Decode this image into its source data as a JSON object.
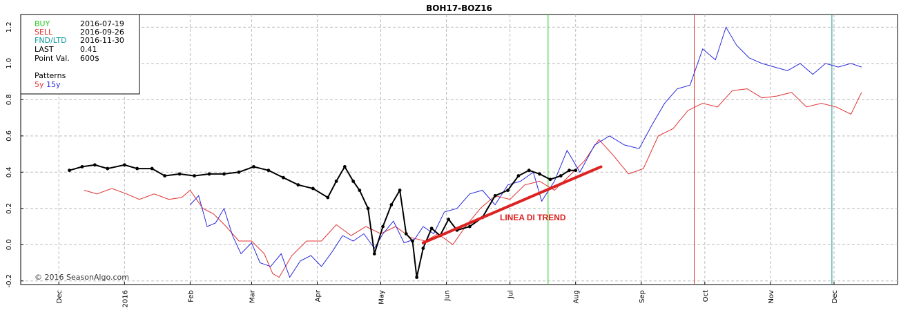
{
  "chart_data": {
    "type": "line",
    "title": "BOH17-BOZ16",
    "xlabel": "",
    "ylabel": "",
    "ylim": [
      -0.22,
      1.27
    ],
    "y_ticks": [
      "-0.2",
      "0.0",
      "0.2",
      "0.4",
      "0.6",
      "0.8",
      "1.0",
      "1.2"
    ],
    "x_ticks": [
      "Dec",
      "2016",
      "Feb",
      "Mar",
      "Apr",
      "May",
      "Jun",
      "Jul",
      "Aug",
      "Sep",
      "Oct",
      "Nov",
      "Dec"
    ],
    "grid": true,
    "info_box": {
      "rows": [
        {
          "label": "BUY",
          "value": "2016-07-19",
          "color": "#22cc22"
        },
        {
          "label": "SELL",
          "value": "2016-09-26",
          "color": "#e03030"
        },
        {
          "label": "FND/LTD",
          "value": "2016-11-30",
          "color": "#119999"
        },
        {
          "label": "LAST",
          "value": "0.41",
          "color": "#000000"
        },
        {
          "label": "Point Val.",
          "value": "600$",
          "color": "#000000"
        }
      ],
      "patterns_label": "Patterns",
      "pattern_5y": "5y",
      "pattern_15y": "15y"
    },
    "vlines": [
      {
        "name": "buy",
        "x": "2016-07-19",
        "color": "#22cc22"
      },
      {
        "name": "sell",
        "x": "2016-09-26",
        "color": "#e03030"
      },
      {
        "name": "fnd",
        "x": "2016-11-30",
        "color": "#119999"
      }
    ],
    "annotation": {
      "text": "LINEA DI TREND",
      "color": "#dd2222",
      "line": [
        {
          "x": "2016-05-21",
          "y": 0.01
        },
        {
          "x": "2016-08-13",
          "y": 0.43
        }
      ]
    },
    "copyright": "© 2016 SeasonAlgo.com",
    "series": [
      {
        "name": "5y",
        "color": "#e03030",
        "points": [
          [
            "2015-12-13",
            0.3
          ],
          [
            "2015-12-19",
            0.28
          ],
          [
            "2015-12-26",
            0.31
          ],
          [
            "2016-01-02",
            0.28
          ],
          [
            "2016-01-08",
            0.25
          ],
          [
            "2016-01-15",
            0.28
          ],
          [
            "2016-01-22",
            0.25
          ],
          [
            "2016-01-28",
            0.26
          ],
          [
            "2016-02-01",
            0.3
          ],
          [
            "2016-02-07",
            0.2
          ],
          [
            "2016-02-12",
            0.17
          ],
          [
            "2016-02-18",
            0.1
          ],
          [
            "2016-02-24",
            0.02
          ],
          [
            "2016-03-01",
            0.02
          ],
          [
            "2016-03-07",
            -0.05
          ],
          [
            "2016-03-11",
            -0.16
          ],
          [
            "2016-03-14",
            -0.18
          ],
          [
            "2016-03-20",
            -0.06
          ],
          [
            "2016-03-27",
            0.02
          ],
          [
            "2016-04-03",
            0.02
          ],
          [
            "2016-04-10",
            0.11
          ],
          [
            "2016-04-17",
            0.05
          ],
          [
            "2016-04-24",
            0.1
          ],
          [
            "2016-05-01",
            0.06
          ],
          [
            "2016-05-08",
            0.1
          ],
          [
            "2016-05-15",
            0.04
          ],
          [
            "2016-05-22",
            0.02
          ],
          [
            "2016-05-28",
            0.06
          ],
          [
            "2016-06-04",
            0.0
          ],
          [
            "2016-06-10",
            0.1
          ],
          [
            "2016-06-17",
            0.2
          ],
          [
            "2016-06-24",
            0.27
          ],
          [
            "2016-07-01",
            0.25
          ],
          [
            "2016-07-08",
            0.33
          ],
          [
            "2016-07-15",
            0.35
          ],
          [
            "2016-07-22",
            0.3
          ],
          [
            "2016-07-29",
            0.38
          ],
          [
            "2016-08-05",
            0.46
          ],
          [
            "2016-08-12",
            0.58
          ],
          [
            "2016-08-19",
            0.49
          ],
          [
            "2016-08-26",
            0.39
          ],
          [
            "2016-09-02",
            0.42
          ],
          [
            "2016-09-09",
            0.6
          ],
          [
            "2016-09-16",
            0.64
          ],
          [
            "2016-09-23",
            0.74
          ],
          [
            "2016-09-30",
            0.78
          ],
          [
            "2016-10-07",
            0.76
          ],
          [
            "2016-10-14",
            0.85
          ],
          [
            "2016-10-21",
            0.86
          ],
          [
            "2016-10-28",
            0.81
          ],
          [
            "2016-11-04",
            0.82
          ],
          [
            "2016-11-11",
            0.84
          ],
          [
            "2016-11-18",
            0.76
          ],
          [
            "2016-11-25",
            0.78
          ],
          [
            "2016-12-02",
            0.76
          ],
          [
            "2016-12-09",
            0.72
          ],
          [
            "2016-12-14",
            0.84
          ]
        ]
      },
      {
        "name": "15y",
        "color": "#2828dd",
        "points": [
          [
            "2016-02-01",
            0.22
          ],
          [
            "2016-02-05",
            0.27
          ],
          [
            "2016-02-09",
            0.1
          ],
          [
            "2016-02-13",
            0.12
          ],
          [
            "2016-02-17",
            0.2
          ],
          [
            "2016-02-21",
            0.05
          ],
          [
            "2016-02-25",
            -0.05
          ],
          [
            "2016-03-01",
            0.01
          ],
          [
            "2016-03-05",
            -0.1
          ],
          [
            "2016-03-10",
            -0.12
          ],
          [
            "2016-03-15",
            -0.05
          ],
          [
            "2016-03-19",
            -0.18
          ],
          [
            "2016-03-24",
            -0.09
          ],
          [
            "2016-03-29",
            -0.06
          ],
          [
            "2016-04-03",
            -0.12
          ],
          [
            "2016-04-08",
            -0.04
          ],
          [
            "2016-04-13",
            0.05
          ],
          [
            "2016-04-18",
            0.02
          ],
          [
            "2016-04-23",
            0.06
          ],
          [
            "2016-04-28",
            -0.02
          ],
          [
            "2016-05-02",
            0.06
          ],
          [
            "2016-05-07",
            0.13
          ],
          [
            "2016-05-12",
            0.01
          ],
          [
            "2016-05-17",
            0.03
          ],
          [
            "2016-05-21",
            0.1
          ],
          [
            "2016-05-26",
            0.06
          ],
          [
            "2016-05-31",
            0.18
          ],
          [
            "2016-06-06",
            0.2
          ],
          [
            "2016-06-12",
            0.28
          ],
          [
            "2016-06-18",
            0.3
          ],
          [
            "2016-06-24",
            0.22
          ],
          [
            "2016-06-30",
            0.33
          ],
          [
            "2016-07-06",
            0.35
          ],
          [
            "2016-07-12",
            0.4
          ],
          [
            "2016-07-16",
            0.24
          ],
          [
            "2016-07-22",
            0.35
          ],
          [
            "2016-07-28",
            0.52
          ],
          [
            "2016-08-03",
            0.4
          ],
          [
            "2016-08-10",
            0.55
          ],
          [
            "2016-08-17",
            0.6
          ],
          [
            "2016-08-24",
            0.55
          ],
          [
            "2016-08-31",
            0.53
          ],
          [
            "2016-09-06",
            0.66
          ],
          [
            "2016-09-12",
            0.78
          ],
          [
            "2016-09-18",
            0.86
          ],
          [
            "2016-09-24",
            0.88
          ],
          [
            "2016-09-30",
            1.08
          ],
          [
            "2016-10-06",
            1.02
          ],
          [
            "2016-10-11",
            1.2
          ],
          [
            "2016-10-16",
            1.1
          ],
          [
            "2016-10-22",
            1.03
          ],
          [
            "2016-10-28",
            1.0
          ],
          [
            "2016-11-03",
            0.98
          ],
          [
            "2016-11-09",
            0.96
          ],
          [
            "2016-11-15",
            1.0
          ],
          [
            "2016-11-21",
            0.94
          ],
          [
            "2016-11-27",
            1.0
          ],
          [
            "2016-12-03",
            0.98
          ],
          [
            "2016-12-09",
            1.0
          ],
          [
            "2016-12-14",
            0.98
          ]
        ]
      },
      {
        "name": "",
        "color": "#000000",
        "points": [
          [
            "2015-12-06",
            0.41
          ],
          [
            "2015-12-12",
            0.43
          ],
          [
            "2015-12-18",
            0.44
          ],
          [
            "2015-12-24",
            0.42
          ],
          [
            "2016-01-01",
            0.44
          ],
          [
            "2016-01-07",
            0.42
          ],
          [
            "2016-01-14",
            0.42
          ],
          [
            "2016-01-20",
            0.38
          ],
          [
            "2016-01-27",
            0.39
          ],
          [
            "2016-02-03",
            0.38
          ],
          [
            "2016-02-10",
            0.39
          ],
          [
            "2016-02-17",
            0.39
          ],
          [
            "2016-02-24",
            0.4
          ],
          [
            "2016-03-02",
            0.43
          ],
          [
            "2016-03-09",
            0.41
          ],
          [
            "2016-03-16",
            0.37
          ],
          [
            "2016-03-23",
            0.33
          ],
          [
            "2016-03-30",
            0.31
          ],
          [
            "2016-04-06",
            0.26
          ],
          [
            "2016-04-10",
            0.35
          ],
          [
            "2016-04-14",
            0.43
          ],
          [
            "2016-04-18",
            0.35
          ],
          [
            "2016-04-21",
            0.3
          ],
          [
            "2016-04-25",
            0.2
          ],
          [
            "2016-04-28",
            -0.05
          ],
          [
            "2016-05-02",
            0.1
          ],
          [
            "2016-05-06",
            0.22
          ],
          [
            "2016-05-10",
            0.3
          ],
          [
            "2016-05-13",
            0.06
          ],
          [
            "2016-05-16",
            0.02
          ],
          [
            "2016-05-18",
            -0.18
          ],
          [
            "2016-05-21",
            -0.02
          ],
          [
            "2016-05-25",
            0.09
          ],
          [
            "2016-05-29",
            0.05
          ],
          [
            "2016-06-02",
            0.14
          ],
          [
            "2016-06-06",
            0.08
          ],
          [
            "2016-06-12",
            0.1
          ],
          [
            "2016-06-18",
            0.15
          ],
          [
            "2016-06-24",
            0.27
          ],
          [
            "2016-06-30",
            0.3
          ],
          [
            "2016-07-05",
            0.38
          ],
          [
            "2016-07-10",
            0.41
          ],
          [
            "2016-07-15",
            0.39
          ],
          [
            "2016-07-20",
            0.36
          ],
          [
            "2016-07-25",
            0.38
          ],
          [
            "2016-07-29",
            0.41
          ],
          [
            "2016-08-01",
            0.41
          ]
        ]
      }
    ]
  }
}
